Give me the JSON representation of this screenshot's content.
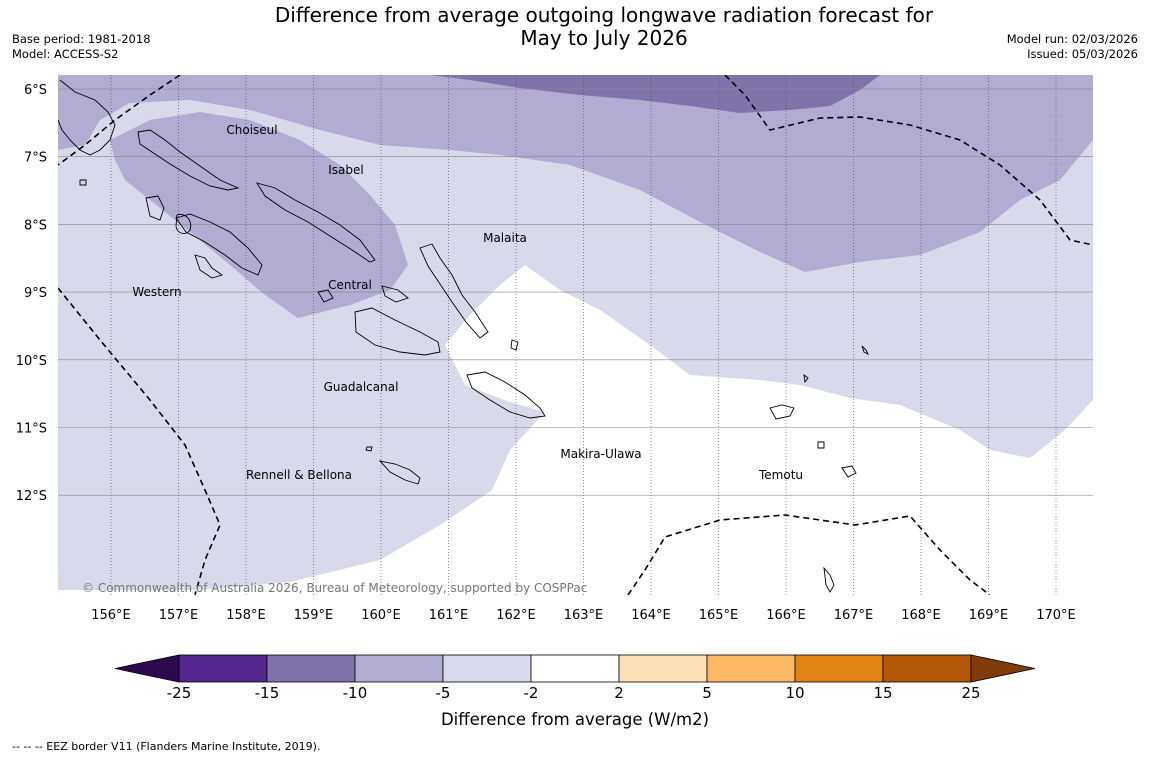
{
  "header": {
    "title_line1": "Difference from average outgoing longwave radiation forecast for",
    "title_line2": "May to July 2026",
    "base_period": "Base period: 1981-2018",
    "model": "Model: ACCESS-S2",
    "model_run": "Model run: 02/03/2026",
    "issued": "Issued: 05/03/2026"
  },
  "map": {
    "copyright": "© Commonwealth of Australia 2026, Bureau of Meteorology, supported by COSPPac",
    "lat_labels": [
      "6°S",
      "7°S",
      "8°S",
      "9°S",
      "10°S",
      "11°S",
      "12°S"
    ],
    "lon_labels": [
      "156°E",
      "157°E",
      "158°E",
      "159°E",
      "160°E",
      "161°E",
      "162°E",
      "163°E",
      "164°E",
      "165°E",
      "166°E",
      "167°E",
      "168°E",
      "169°E",
      "170°E"
    ],
    "provinces": [
      "Choiseul",
      "Isabel",
      "Malaita",
      "Western",
      "Central",
      "Guadalcanal",
      "Makira-Ulawa",
      "Temotu",
      "Rennell & Bellona"
    ]
  },
  "colorbar": {
    "title": "Difference from average (W/m2)",
    "ticks": [
      "-25",
      "-15",
      "-10",
      "-5",
      "-2",
      "2",
      "5",
      "10",
      "15",
      "25"
    ],
    "colors": {
      "below_min": "#2d0a4e",
      "neg_25_15": "#54278f",
      "neg_15_10": "#8073ac",
      "neg_10_5": "#b2abd2",
      "neg_5_2": "#d8daeb",
      "neutral": "#ffffff",
      "pos_2_5": "#fee0b6",
      "pos_5_10": "#fdb863",
      "pos_10_15": "#e08214",
      "pos_15_25": "#b35806",
      "above_max": "#7f3b08"
    }
  },
  "legend": {
    "eez": "--  --  -- EEZ border V11 (Flanders Marine Institute, 2019)."
  }
}
